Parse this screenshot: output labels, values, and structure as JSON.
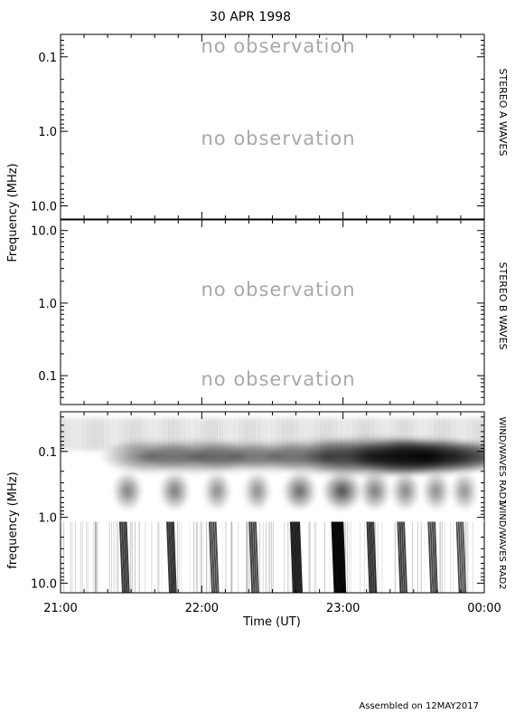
{
  "title": "30 APR 1998",
  "footer": "Assembled on 12MAY2017",
  "ylabel_top": "Frequency (MHz)",
  "ylabel_bottom": "frequency (MHz)",
  "xlabel": "Time (UT)",
  "colors": {
    "axis": "#000000",
    "no_obs_text": "#a8a8a8",
    "spectrogram_dark": "#000000",
    "spectrogram_light": "#ffffff"
  },
  "chart_data": [
    {
      "type": "heatmap",
      "panel": "stereo-a",
      "side_label": "STEREO A WAVES",
      "scale": "log",
      "ylim": [
        0.05,
        15
      ],
      "y_inverted": true,
      "yticks": [
        {
          "v": 0.1,
          "label": "0.1"
        },
        {
          "v": 1.0,
          "label": "1.0"
        },
        {
          "v": 10.0,
          "label": "10.0"
        }
      ],
      "annotations": [
        {
          "text": "no observation",
          "freq": 0.075
        },
        {
          "text": "no observation",
          "freq": 1.0
        }
      ]
    },
    {
      "type": "heatmap",
      "panel": "stereo-b",
      "side_label": "STEREO B WAVES",
      "scale": "log",
      "ylim": [
        0.04,
        14
      ],
      "y_inverted": false,
      "yticks": [
        {
          "v": 10.0,
          "label": "10.0"
        },
        {
          "v": 1.0,
          "label": "1.0"
        },
        {
          "v": 0.1,
          "label": "0.1"
        }
      ],
      "annotations": [
        {
          "text": "no observation",
          "freq": 0.6
        },
        {
          "text": "no observation",
          "freq": 0.075
        }
      ]
    },
    {
      "type": "heatmap",
      "panel": "wind",
      "side_labels": [
        "WIND/WAVES RAD1",
        "WIND/WAVES RAD2"
      ],
      "scale": "log",
      "ylim": [
        0.025,
        14
      ],
      "y_inverted": true,
      "yticks": [
        {
          "v": 0.1,
          "label": "0.1"
        },
        {
          "v": 1.0,
          "label": "1.0"
        },
        {
          "v": 10.0,
          "label": "10.0"
        }
      ],
      "xlim": [
        "21:00",
        "00:00"
      ],
      "xticks": [
        "21:00",
        "22:00",
        "23:00",
        "00:00"
      ],
      "bursts": [
        {
          "time": "21:27",
          "intensity": 0.55
        },
        {
          "time": "21:47",
          "intensity": 0.6
        },
        {
          "time": "22:05",
          "intensity": 0.45
        },
        {
          "time": "22:22",
          "intensity": 0.45
        },
        {
          "time": "22:40",
          "intensity": 0.75
        },
        {
          "time": "22:58",
          "intensity": 1.0
        },
        {
          "time": "23:12",
          "intensity": 0.6
        },
        {
          "time": "23:25",
          "intensity": 0.5
        },
        {
          "time": "23:38",
          "intensity": 0.45
        },
        {
          "time": "23:50",
          "intensity": 0.4
        }
      ]
    }
  ]
}
